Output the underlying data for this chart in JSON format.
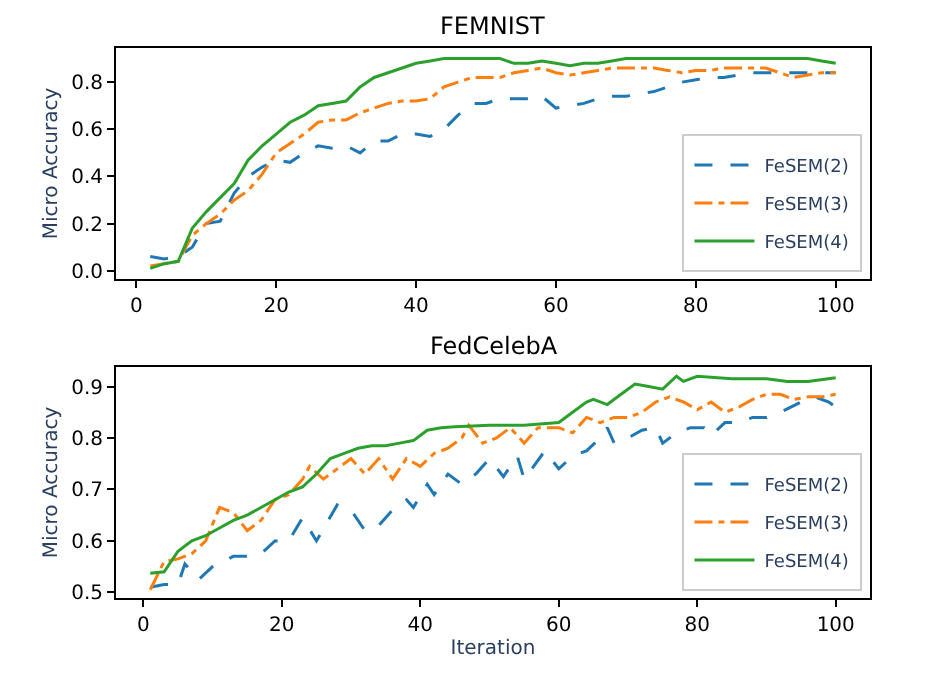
{
  "chart_data": [
    {
      "type": "line",
      "title": "FEMNIST",
      "ylabel": "Micro Accuracy",
      "xlim": [
        -2.9,
        104.9
      ],
      "xticks": [
        0,
        20,
        40,
        60,
        80,
        100
      ],
      "ylim": [
        -0.035,
        0.945
      ],
      "yticks": [
        {
          "value": 0,
          "label": "0.0"
        },
        0.2,
        0.4,
        0.6,
        0.8
      ],
      "legend": "bottom right",
      "tick_labels": "xy",
      "series": [
        {
          "name": "FeSEM(2)",
          "color": "#1f77b4",
          "line_style": "dashed",
          "x": [
            2,
            4,
            6,
            8,
            10,
            12,
            14,
            16,
            18,
            20,
            22,
            24,
            26,
            28,
            30,
            32,
            34,
            36,
            38,
            40,
            42,
            44,
            46,
            48,
            50,
            52,
            54,
            56,
            58,
            60,
            62,
            64,
            66,
            68,
            70,
            72,
            74,
            76,
            78,
            80,
            82,
            84,
            86,
            88,
            90,
            92,
            94,
            96,
            98,
            100
          ],
          "values": [
            0.06,
            0.05,
            0.06,
            0.1,
            0.2,
            0.21,
            0.33,
            0.4,
            0.44,
            0.47,
            0.46,
            0.5,
            0.53,
            0.52,
            0.53,
            0.5,
            0.55,
            0.55,
            0.58,
            0.58,
            0.57,
            0.6,
            0.66,
            0.71,
            0.71,
            0.73,
            0.73,
            0.73,
            0.74,
            0.69,
            0.7,
            0.71,
            0.73,
            0.74,
            0.74,
            0.75,
            0.76,
            0.78,
            0.8,
            0.81,
            0.82,
            0.82,
            0.83,
            0.84,
            0.84,
            0.84,
            0.84,
            0.84,
            0.84,
            0.84
          ]
        },
        {
          "name": "FeSEM(3)",
          "color": "#ff7f0e",
          "line_style": "dashdot",
          "x": [
            2,
            4,
            6,
            8,
            10,
            12,
            14,
            16,
            18,
            20,
            22,
            24,
            26,
            28,
            30,
            32,
            34,
            36,
            38,
            40,
            42,
            44,
            46,
            48,
            50,
            52,
            54,
            56,
            58,
            60,
            62,
            64,
            66,
            68,
            70,
            72,
            74,
            76,
            78,
            80,
            82,
            84,
            86,
            88,
            90,
            92,
            94,
            96,
            98,
            100
          ],
          "values": [
            0.02,
            0.03,
            0.04,
            0.15,
            0.2,
            0.24,
            0.3,
            0.34,
            0.41,
            0.5,
            0.54,
            0.58,
            0.63,
            0.64,
            0.64,
            0.67,
            0.69,
            0.71,
            0.72,
            0.72,
            0.73,
            0.78,
            0.8,
            0.82,
            0.82,
            0.82,
            0.84,
            0.85,
            0.86,
            0.84,
            0.83,
            0.84,
            0.85,
            0.86,
            0.86,
            0.86,
            0.86,
            0.85,
            0.84,
            0.85,
            0.85,
            0.86,
            0.86,
            0.86,
            0.86,
            0.84,
            0.82,
            0.83,
            0.84,
            0.84
          ]
        },
        {
          "name": "FeSEM(4)",
          "color": "#2ca02c",
          "line_style": "solid",
          "x": [
            2,
            4,
            6,
            8,
            10,
            12,
            14,
            16,
            18,
            20,
            22,
            24,
            26,
            28,
            30,
            32,
            34,
            36,
            38,
            40,
            42,
            44,
            46,
            48,
            50,
            52,
            54,
            56,
            58,
            60,
            62,
            64,
            66,
            68,
            70,
            72,
            74,
            76,
            78,
            80,
            82,
            84,
            86,
            88,
            90,
            92,
            94,
            96,
            98,
            100
          ],
          "values": [
            0.01,
            0.03,
            0.04,
            0.18,
            0.25,
            0.31,
            0.37,
            0.47,
            0.53,
            0.58,
            0.63,
            0.66,
            0.7,
            0.71,
            0.72,
            0.78,
            0.82,
            0.84,
            0.86,
            0.88,
            0.89,
            0.9,
            0.9,
            0.9,
            0.9,
            0.9,
            0.88,
            0.88,
            0.89,
            0.88,
            0.87,
            0.88,
            0.88,
            0.89,
            0.9,
            0.9,
            0.9,
            0.9,
            0.9,
            0.9,
            0.9,
            0.9,
            0.9,
            0.9,
            0.9,
            0.9,
            0.9,
            0.9,
            0.89,
            0.88
          ]
        }
      ]
    },
    {
      "type": "line",
      "title": "FedCelebA",
      "xlabel": "Iteration",
      "ylabel": "Micro Accuracy",
      "xlim": [
        -3.95,
        104.95
      ],
      "xticks": [
        0,
        20,
        40,
        60,
        80,
        100
      ],
      "ylim": [
        0.489,
        0.938
      ],
      "yticks": [
        0.5,
        0.6,
        0.7,
        0.8,
        0.9
      ],
      "legend": "bottom right",
      "series": [
        {
          "name": "FeSEM(2)",
          "color": "#1f77b4",
          "line_style": "dashed",
          "x": [
            1,
            3,
            5,
            6,
            8,
            10,
            13,
            15,
            17,
            19,
            21,
            23,
            25,
            28,
            30,
            32,
            34,
            36,
            38,
            39,
            41,
            42,
            44,
            46,
            48,
            50,
            52,
            54,
            55,
            58,
            60,
            62,
            64,
            66,
            67,
            68,
            70,
            72,
            74,
            75,
            77,
            79,
            81,
            82,
            84,
            86,
            88,
            90,
            92,
            95,
            97,
            99,
            100
          ],
          "values": [
            0.51,
            0.515,
            0.515,
            0.555,
            0.525,
            0.55,
            0.57,
            0.57,
            0.575,
            0.6,
            0.6,
            0.645,
            0.6,
            0.67,
            0.66,
            0.62,
            0.63,
            0.66,
            0.68,
            0.665,
            0.71,
            0.69,
            0.73,
            0.71,
            0.73,
            0.76,
            0.725,
            0.765,
            0.72,
            0.775,
            0.74,
            0.765,
            0.775,
            0.8,
            0.82,
            0.79,
            0.8,
            0.815,
            0.82,
            0.79,
            0.81,
            0.82,
            0.82,
            0.805,
            0.83,
            0.83,
            0.84,
            0.84,
            0.85,
            0.87,
            0.88,
            0.87,
            0.86
          ]
        },
        {
          "name": "FeSEM(3)",
          "color": "#ff7f0e",
          "line_style": "dashdot",
          "x": [
            1,
            3,
            5,
            7,
            9,
            11,
            13,
            15,
            17,
            19,
            21,
            23,
            24,
            26,
            28,
            30,
            32,
            34,
            36,
            38,
            40,
            42,
            44,
            46,
            47,
            49,
            51,
            53,
            55,
            57,
            60,
            62,
            64,
            66,
            68,
            70,
            72,
            74,
            76,
            78,
            80,
            82,
            84,
            86,
            88,
            90,
            92,
            94,
            96,
            98,
            100
          ],
          "values": [
            0.505,
            0.56,
            0.565,
            0.575,
            0.6,
            0.665,
            0.655,
            0.62,
            0.64,
            0.68,
            0.69,
            0.72,
            0.745,
            0.72,
            0.74,
            0.76,
            0.73,
            0.76,
            0.72,
            0.76,
            0.745,
            0.77,
            0.78,
            0.8,
            0.825,
            0.79,
            0.8,
            0.82,
            0.79,
            0.82,
            0.82,
            0.81,
            0.84,
            0.83,
            0.84,
            0.84,
            0.85,
            0.87,
            0.88,
            0.87,
            0.855,
            0.87,
            0.85,
            0.86,
            0.875,
            0.885,
            0.885,
            0.875,
            0.88,
            0.88,
            0.885
          ]
        },
        {
          "name": "FeSEM(4)",
          "color": "#2ca02c",
          "line_style": "solid",
          "x": [
            1,
            3,
            5,
            7,
            9,
            11,
            13,
            15,
            17,
            19,
            21,
            23,
            25,
            27,
            29,
            31,
            33,
            35,
            37,
            39,
            41,
            43,
            45,
            50,
            55,
            60,
            62,
            64,
            65,
            67,
            69,
            71,
            73,
            75,
            77,
            78,
            80,
            85,
            90,
            93,
            96,
            100
          ],
          "values": [
            0.537,
            0.54,
            0.58,
            0.6,
            0.61,
            0.625,
            0.64,
            0.65,
            0.665,
            0.68,
            0.695,
            0.705,
            0.73,
            0.76,
            0.77,
            0.78,
            0.785,
            0.785,
            0.79,
            0.795,
            0.815,
            0.82,
            0.822,
            0.825,
            0.825,
            0.83,
            0.85,
            0.87,
            0.875,
            0.865,
            0.885,
            0.905,
            0.9,
            0.895,
            0.92,
            0.91,
            0.92,
            0.915,
            0.915,
            0.91,
            0.91,
            0.917
          ]
        }
      ]
    }
  ]
}
